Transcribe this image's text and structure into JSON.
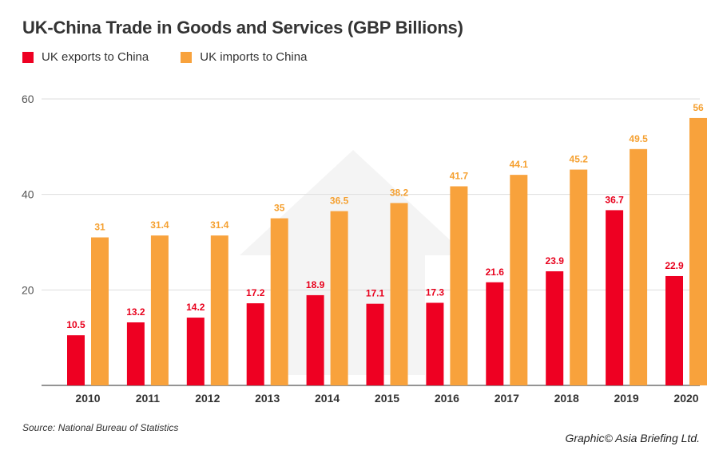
{
  "title": "UK-China Trade in Goods and Services (GBP Billions)",
  "legend": [
    {
      "label": "UK exports to China",
      "color": "#ee0022"
    },
    {
      "label": "UK imports to China",
      "color": "#f8a23c"
    }
  ],
  "source": "Source: National Bureau of Statistics",
  "credit": "Graphic© Asia Briefing Ltd.",
  "chart_data": {
    "type": "bar",
    "categories": [
      "2010",
      "2011",
      "2012",
      "2013",
      "2014",
      "2015",
      "2016",
      "2017",
      "2018",
      "2019",
      "2020"
    ],
    "series": [
      {
        "name": "UK exports to China",
        "color": "#ee0022",
        "label_color": "#e8001c",
        "values": [
          10.5,
          13.2,
          14.2,
          17.2,
          18.9,
          17.1,
          17.3,
          21.6,
          23.9,
          36.7,
          22.9
        ]
      },
      {
        "name": "UK imports to China",
        "color": "#f8a23c",
        "label_color": "#f5a030",
        "values": [
          31,
          31.4,
          31.4,
          35,
          36.5,
          38.2,
          41.7,
          44.1,
          45.2,
          49.5,
          56
        ]
      }
    ],
    "y_ticks": [
      20,
      40,
      60
    ],
    "ylim": [
      0,
      60
    ],
    "grid": true,
    "legend_position": "top-left"
  }
}
